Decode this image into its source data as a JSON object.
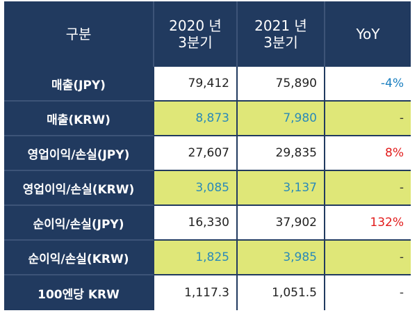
{
  "header": {
    "category": "구분",
    "period1_line1": "2020 년",
    "period1_line2": "3분기",
    "period2_line1": "2021 년",
    "period2_line2": "3분기",
    "yoy": "YoY"
  },
  "rows": [
    {
      "label": "매출(JPY)",
      "v2020": "79,412",
      "v2021": "75,890",
      "yoy": "-4%"
    },
    {
      "label": "매출(KRW)",
      "v2020": "8,873",
      "v2021": "7,980",
      "yoy": "-"
    },
    {
      "label": "영업이익/손실(JPY)",
      "v2020": "27,607",
      "v2021": "29,835",
      "yoy": "8%"
    },
    {
      "label": "영업이익/손실(KRW)",
      "v2020": "3,085",
      "v2021": "3,137",
      "yoy": "-"
    },
    {
      "label": "순이익/손실(JPY)",
      "v2020": "16,330",
      "v2021": "37,902",
      "yoy": "132%"
    },
    {
      "label": "순이익/손실(KRW)",
      "v2020": "1,825",
      "v2021": "3,985",
      "yoy": "-"
    },
    {
      "label": "100엔당 KRW",
      "v2020": "1,117.3",
      "v2021": "1,051.5",
      "yoy": "-"
    }
  ],
  "colors": {
    "header_bg": "#213a5f",
    "krw_row_bg": "#dfe778",
    "krw_value_text": "#2a8ab8",
    "yoy_negative": "#1a7fc0",
    "yoy_positive": "#e21b1b"
  }
}
